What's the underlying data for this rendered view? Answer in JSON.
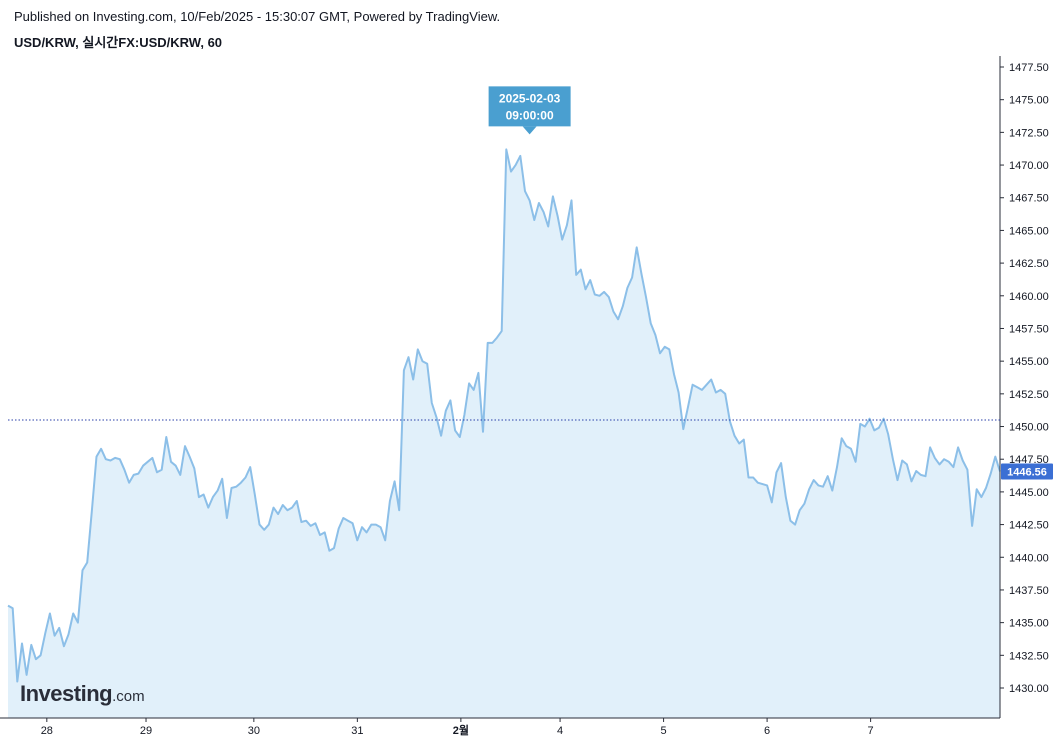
{
  "header": {
    "published": "Published on Investing.com, 10/Feb/2025 - 15:30:07 GMT, Powered by TradingView.",
    "symbol": "USD/KRW, 실시간FX:USD/KRW, 60"
  },
  "logo": {
    "main": "Investing",
    "suffix": ".com"
  },
  "colors": {
    "line": "#8cbfe8",
    "area": "#e1f0fa",
    "price_line": "#2a3fa8",
    "price_label_bg": "#3b6fd4",
    "tooltip_bg": "#4a9fd0",
    "axis": "#2a2e39"
  },
  "chart_data": {
    "type": "area",
    "title": "USD/KRW, 실시간FX:USD/KRW, 60",
    "xlabel": "",
    "ylabel": "",
    "ylim": [
      1427.5,
      1478.5
    ],
    "xlim": [
      0,
      230
    ],
    "y_ticks": [
      "1430.00",
      "1432.50",
      "1435.00",
      "1437.50",
      "1440.00",
      "1442.50",
      "1445.00",
      "1447.50",
      "1450.00",
      "1452.50",
      "1455.00",
      "1457.50",
      "1460.00",
      "1462.50",
      "1465.00",
      "1467.50",
      "1470.00",
      "1472.50",
      "1475.00",
      "1477.50"
    ],
    "x_ticks": [
      {
        "label": "28",
        "x": 9
      },
      {
        "label": "29",
        "x": 32
      },
      {
        "label": "30",
        "x": 57
      },
      {
        "label": "31",
        "x": 81
      },
      {
        "label": "2월",
        "x": 105
      },
      {
        "label": "4",
        "x": 128
      },
      {
        "label": "5",
        "x": 152
      },
      {
        "label": "6",
        "x": 176
      },
      {
        "label": "7",
        "x": 200
      }
    ],
    "grid": false,
    "last_price": "1446.56",
    "price_line_value": 1450.5,
    "tooltip": {
      "date": "2025-02-03",
      "time": "09:00:00",
      "x": 112,
      "y": 1471.2
    },
    "series": [
      {
        "values": [
          1436.3,
          1436.1,
          1430.5,
          1433.4,
          1431.0,
          1433.3,
          1432.2,
          1432.5,
          1434.2,
          1435.7,
          1434.0,
          1434.6,
          1433.2,
          1434.1,
          1435.7,
          1435.0,
          1439.0,
          1439.6,
          1443.5,
          1447.7,
          1448.3,
          1447.5,
          1447.4,
          1447.6,
          1447.5,
          1446.7,
          1445.7,
          1446.3,
          1446.4,
          1447.0,
          1447.3,
          1447.6,
          1446.5,
          1446.7,
          1449.2,
          1447.3,
          1447.0,
          1446.3,
          1448.5,
          1447.7,
          1446.8,
          1444.6,
          1444.8,
          1443.8,
          1444.6,
          1445.1,
          1446.0,
          1443.0,
          1445.3,
          1445.4,
          1445.7,
          1446.1,
          1446.9,
          1444.8,
          1442.5,
          1442.1,
          1442.5,
          1443.8,
          1443.3,
          1444.0,
          1443.6,
          1443.8,
          1444.3,
          1442.7,
          1442.8,
          1442.4,
          1442.6,
          1441.7,
          1441.9,
          1440.5,
          1440.7,
          1442.2,
          1443.0,
          1442.8,
          1442.6,
          1441.3,
          1442.3,
          1441.9,
          1442.5,
          1442.5,
          1442.3,
          1441.3,
          1444.3,
          1445.8,
          1443.6,
          1454.3,
          1455.3,
          1453.6,
          1455.9,
          1455.0,
          1454.8,
          1451.8,
          1450.7,
          1449.3,
          1451.2,
          1452.0,
          1449.7,
          1449.2,
          1450.9,
          1453.3,
          1452.8,
          1454.1,
          1449.6,
          1456.4,
          1456.4,
          1456.8,
          1457.3,
          1471.2,
          1469.5,
          1470.0,
          1470.7,
          1468.0,
          1467.3,
          1465.8,
          1467.1,
          1466.4,
          1465.3,
          1467.6,
          1466.1,
          1464.3,
          1465.4,
          1467.3,
          1461.6,
          1462.0,
          1460.5,
          1461.2,
          1460.1,
          1460.0,
          1460.3,
          1459.9,
          1458.8,
          1458.2,
          1459.2,
          1460.6,
          1461.4,
          1463.7,
          1461.7,
          1459.9,
          1457.9,
          1457.0,
          1455.6,
          1456.1,
          1455.9,
          1454.0,
          1452.6,
          1449.8,
          1451.5,
          1453.2,
          1453.0,
          1452.8,
          1453.2,
          1453.6,
          1452.6,
          1452.8,
          1452.5,
          1450.4,
          1449.3,
          1448.7,
          1449.0,
          1446.1,
          1446.1,
          1445.7,
          1445.6,
          1445.5,
          1444.2,
          1446.5,
          1447.2,
          1444.6,
          1442.8,
          1442.5,
          1443.6,
          1444.1,
          1445.2,
          1445.9,
          1445.5,
          1445.4,
          1446.2,
          1445.1,
          1446.9,
          1449.1,
          1448.5,
          1448.3,
          1447.3,
          1450.2,
          1450.0,
          1450.6,
          1449.7,
          1449.9,
          1450.6,
          1449.4,
          1447.5,
          1445.9,
          1447.4,
          1447.1,
          1445.8,
          1446.6,
          1446.3,
          1446.2,
          1448.4,
          1447.6,
          1447.1,
          1447.5,
          1447.3,
          1446.9,
          1448.4,
          1447.4,
          1446.7,
          1442.4,
          1445.2,
          1444.6,
          1445.3,
          1446.4,
          1447.7,
          1446.56
        ]
      }
    ]
  }
}
